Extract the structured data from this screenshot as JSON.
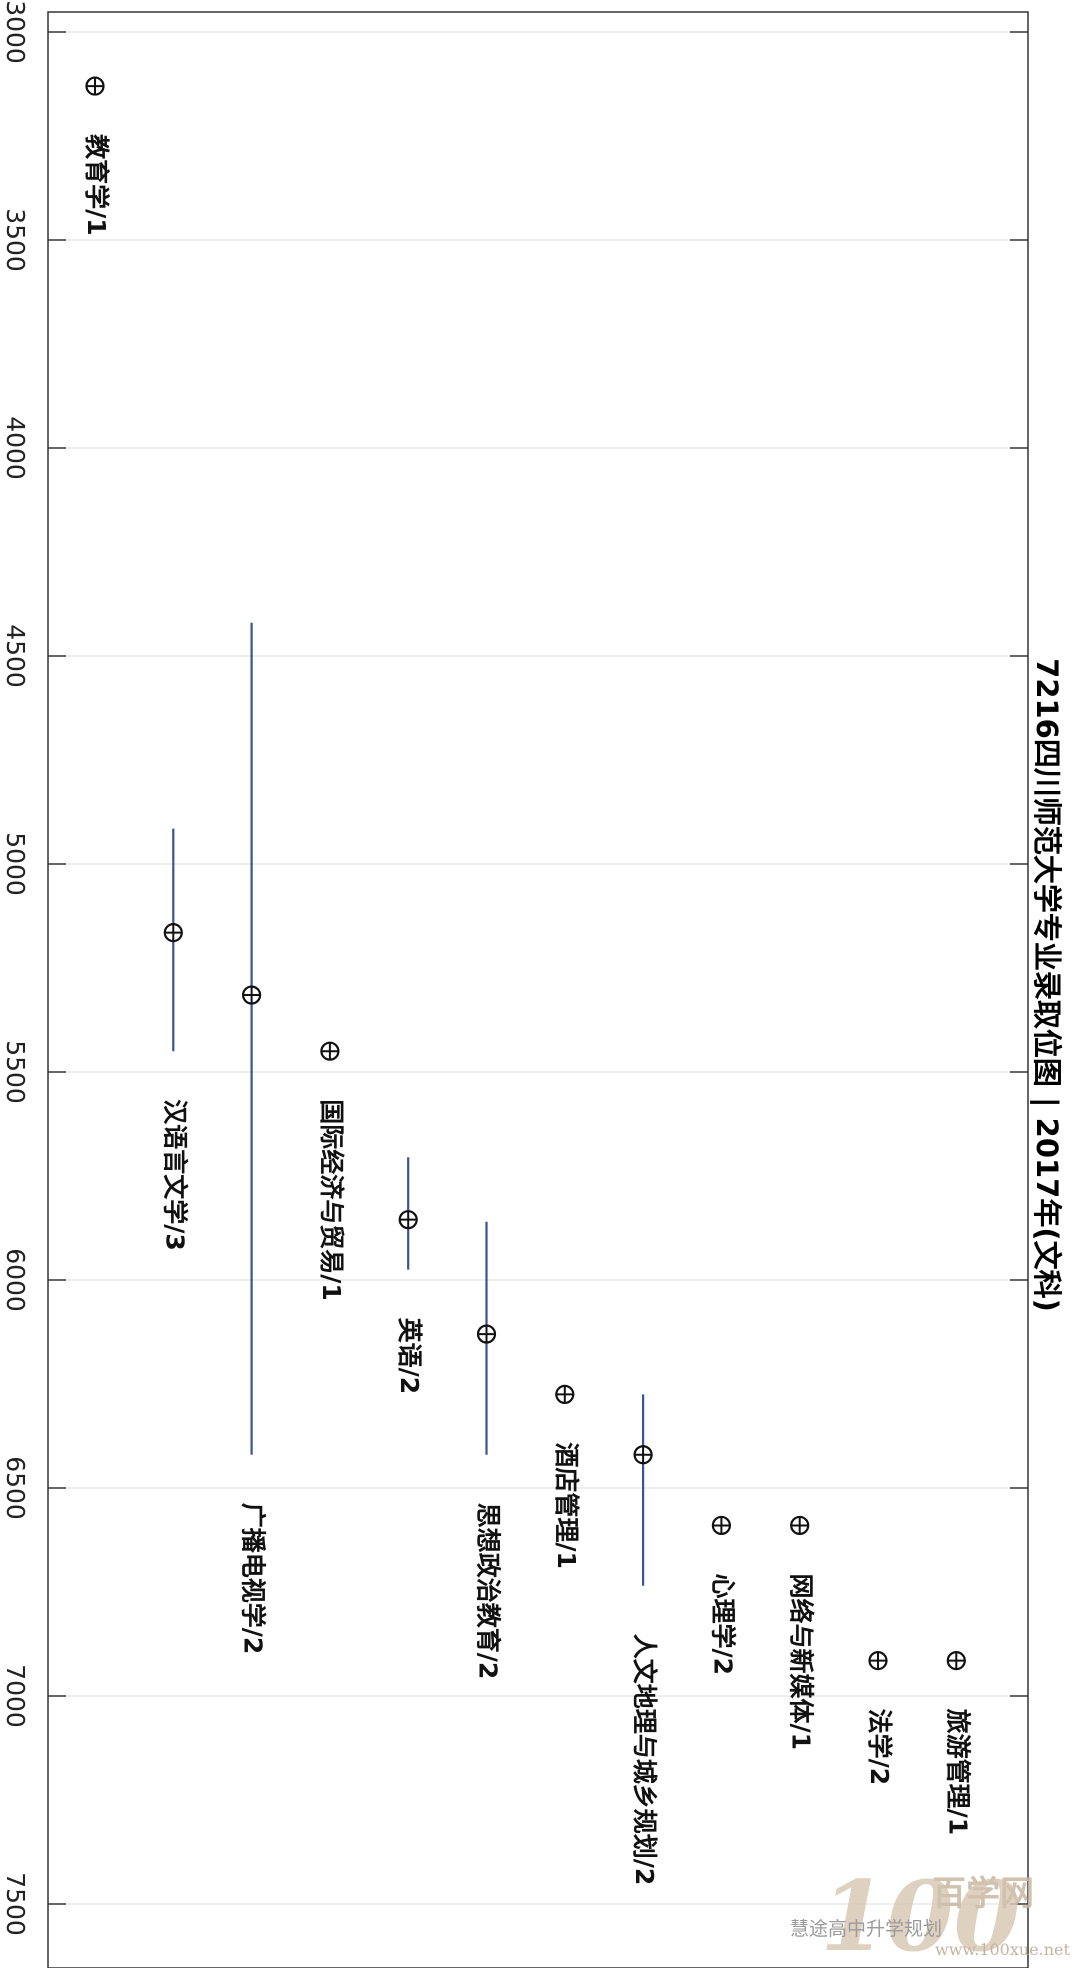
{
  "chart_data": {
    "type": "scatter",
    "title": "7216四川师范大学专业录取位图 | 2017年(文科)",
    "value_axis": {
      "range": [
        3000,
        7600
      ],
      "ticks": [
        3000,
        3500,
        4000,
        4500,
        5000,
        5500,
        6000,
        6500,
        7000,
        7500
      ],
      "grid": true
    },
    "points": [
      {
        "label": "教育学/1",
        "value": 3130
      },
      {
        "label": "汉语言文学/3",
        "value": 5165,
        "min": 4915,
        "max": 5450
      },
      {
        "label": "广播电视学/2",
        "value": 5315,
        "min": 4420,
        "max": 6420
      },
      {
        "label": "国际经济与贸易/1",
        "value": 5450
      },
      {
        "label": "英语/2",
        "value": 5855,
        "min": 5705,
        "max": 5975
      },
      {
        "label": "思想政治教育/2",
        "value": 6130,
        "min": 5860,
        "max": 6420
      },
      {
        "label": "酒店管理/1",
        "value": 6275
      },
      {
        "label": "人文地理与城乡规划/2",
        "value": 6420,
        "min": 6275,
        "max": 6735
      },
      {
        "label": "心理学/2",
        "value": 6590
      },
      {
        "label": "网络与新媒体/1",
        "value": 6590
      },
      {
        "label": "法学/2",
        "value": 6915
      },
      {
        "label": "旅游管理/1",
        "value": 6915
      }
    ]
  },
  "watermark": {
    "big": "100",
    "brand": "百学网",
    "wechat": "慧途高中升学规划",
    "url": "www.100xue.net"
  }
}
